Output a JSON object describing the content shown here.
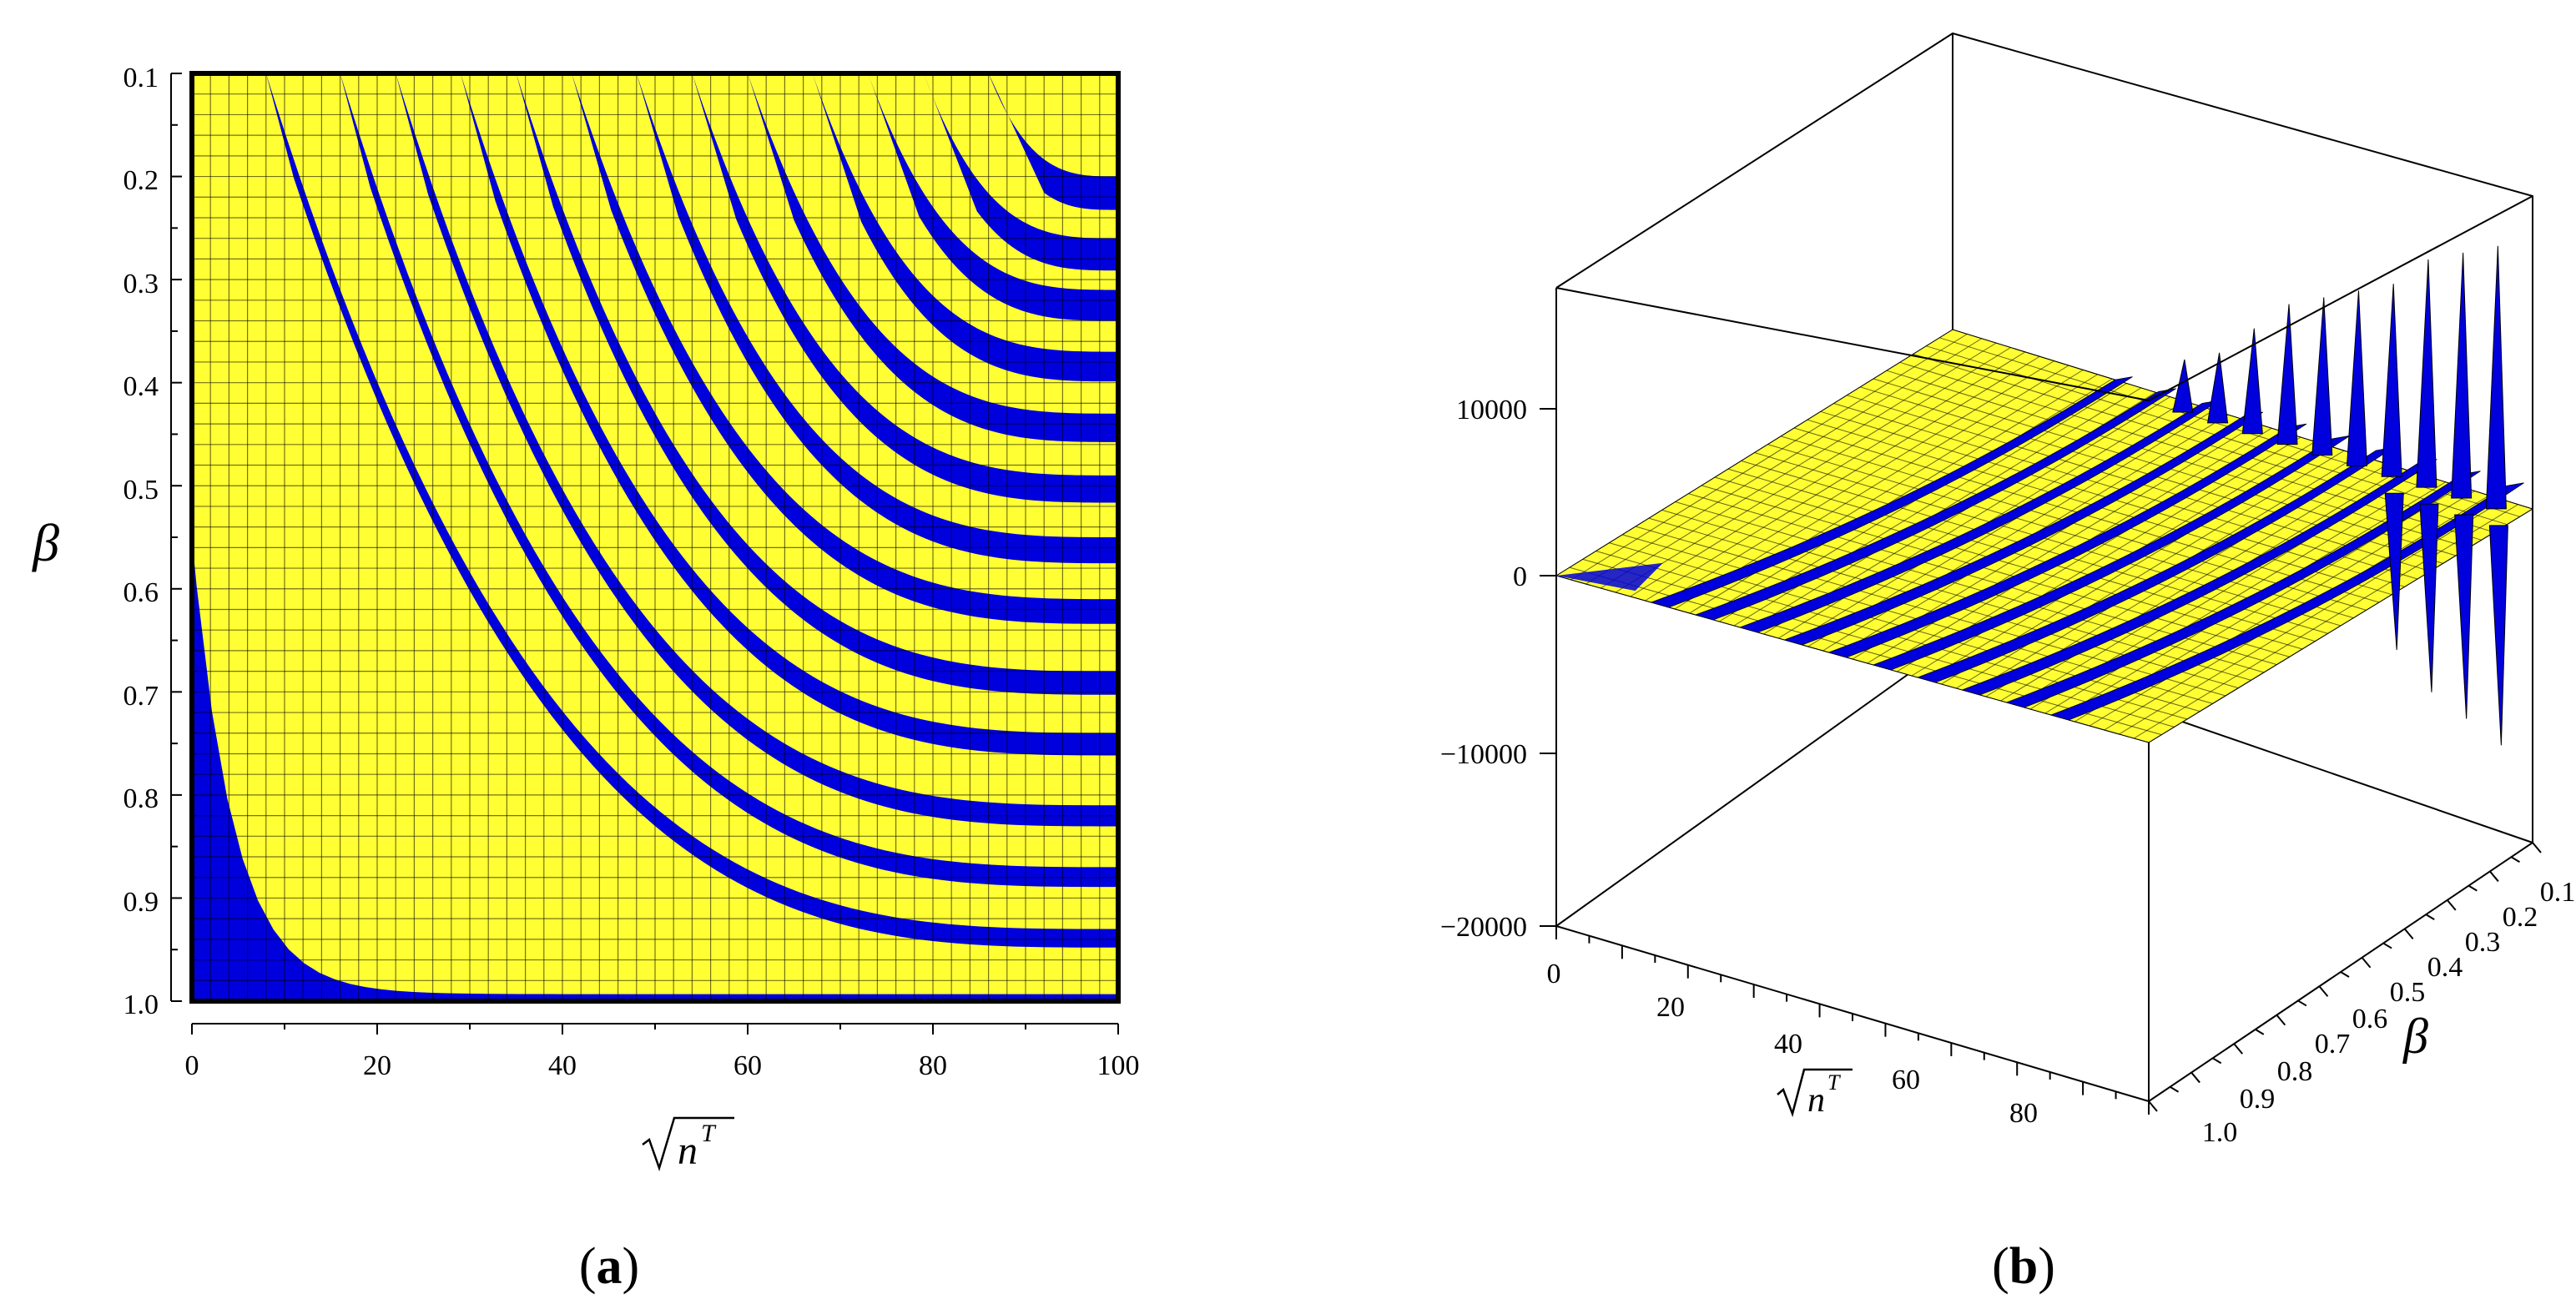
{
  "colors": {
    "surface": "#ffff33",
    "band": "#0000dd",
    "grid": "#000000"
  },
  "chart_data": [
    {
      "type": "heatmap",
      "panel_label": "a",
      "xlabel": "√n^T",
      "ylabel": "β",
      "xlim": [
        0,
        100
      ],
      "ylim": [
        0.1,
        1.0
      ],
      "y_inverted": true,
      "x_ticks": [
        "0",
        "20",
        "40",
        "60",
        "80",
        "100"
      ],
      "y_ticks": [
        "0.1",
        "0.2",
        "0.3",
        "0.4",
        "0.5",
        "0.6",
        "0.7",
        "0.8",
        "0.9",
        "1.0"
      ],
      "grid": true,
      "bands": [
        {
          "x_intercept": 0.5,
          "y_intercept": 0.55
        },
        {
          "x_intercept": 8,
          "y_intercept": 0.93
        },
        {
          "x_intercept": 16,
          "y_intercept": 0.87
        },
        {
          "x_intercept": 22,
          "y_intercept": 0.81
        },
        {
          "x_intercept": 29,
          "y_intercept": 0.74
        },
        {
          "x_intercept": 35,
          "y_intercept": 0.68
        },
        {
          "x_intercept": 41,
          "y_intercept": 0.61
        },
        {
          "x_intercept": 48,
          "y_intercept": 0.55
        },
        {
          "x_intercept": 54,
          "y_intercept": 0.49
        },
        {
          "x_intercept": 60,
          "y_intercept": 0.43
        },
        {
          "x_intercept": 67,
          "y_intercept": 0.37
        },
        {
          "x_intercept": 73,
          "y_intercept": 0.31
        },
        {
          "x_intercept": 79,
          "y_intercept": 0.26
        },
        {
          "x_intercept": 86,
          "y_intercept": 0.2
        }
      ]
    },
    {
      "type": "surface",
      "panel_label": "b",
      "xlabel": "√n^T",
      "ylabel": "β",
      "zlim": [
        -20000,
        15000
      ],
      "x_ticks": [
        "0",
        "20",
        "40",
        "60",
        "80"
      ],
      "y_ticks": [
        "0.1",
        "0.2",
        "0.3",
        "0.4",
        "0.5",
        "0.6",
        "0.7",
        "0.8",
        "0.9",
        "1.0"
      ],
      "z_ticks": [
        "10000",
        "0",
        "−10000",
        "−20000"
      ],
      "spikes": [
        {
          "x": 50,
          "z": 3000
        },
        {
          "x": 55,
          "z": 4000
        },
        {
          "x": 60,
          "z": 6000
        },
        {
          "x": 65,
          "z": 8000
        },
        {
          "x": 70,
          "z": 9000
        },
        {
          "x": 75,
          "z": 10000
        },
        {
          "x": 80,
          "z": 11000
        },
        {
          "x": 85,
          "z": 13000
        },
        {
          "x": 90,
          "z": 14000
        },
        {
          "x": 95,
          "z": 15000
        }
      ]
    }
  ]
}
